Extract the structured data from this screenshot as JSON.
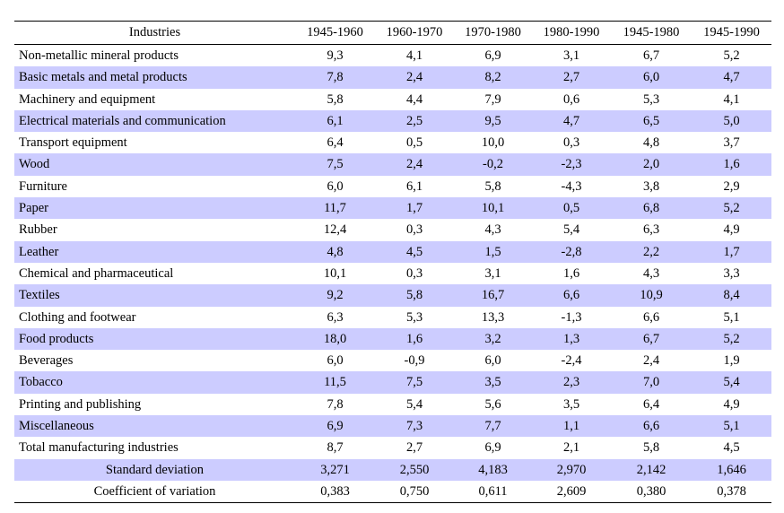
{
  "table": {
    "columns": [
      "Industries",
      "1945-1960",
      "1960-1970",
      "1970-1980",
      "1980-1990",
      "1945-1980",
      "1945-1990"
    ],
    "rows": [
      {
        "label": "Non-metallic mineral products",
        "values": [
          "9,3",
          "4,1",
          "6,9",
          "3,1",
          "6,7",
          "5,2"
        ]
      },
      {
        "label": "Basic metals and metal products",
        "values": [
          "7,8",
          "2,4",
          "8,2",
          "2,7",
          "6,0",
          "4,7"
        ]
      },
      {
        "label": "Machinery and equipment",
        "values": [
          "5,8",
          "4,4",
          "7,9",
          "0,6",
          "5,3",
          "4,1"
        ]
      },
      {
        "label": "Electrical materials and communication",
        "values": [
          "6,1",
          "2,5",
          "9,5",
          "4,7",
          "6,5",
          "5,0"
        ]
      },
      {
        "label": "Transport equipment",
        "values": [
          "6,4",
          "0,5",
          "10,0",
          "0,3",
          "4,8",
          "3,7"
        ]
      },
      {
        "label": "Wood",
        "values": [
          "7,5",
          "2,4",
          "-0,2",
          "-2,3",
          "2,0",
          "1,6"
        ]
      },
      {
        "label": "Furniture",
        "values": [
          "6,0",
          "6,1",
          "5,8",
          "-4,3",
          "3,8",
          "2,9"
        ]
      },
      {
        "label": "Paper",
        "values": [
          "11,7",
          "1,7",
          "10,1",
          "0,5",
          "6,8",
          "5,2"
        ]
      },
      {
        "label": "Rubber",
        "values": [
          "12,4",
          "0,3",
          "4,3",
          "5,4",
          "6,3",
          "4,9"
        ]
      },
      {
        "label": "Leather",
        "values": [
          "4,8",
          "4,5",
          "1,5",
          "-2,8",
          "2,2",
          "1,7"
        ]
      },
      {
        "label": "Chemical and pharmaceutical",
        "values": [
          "10,1",
          "0,3",
          "3,1",
          "1,6",
          "4,3",
          "3,3"
        ]
      },
      {
        "label": "Textiles",
        "values": [
          "9,2",
          "5,8",
          "16,7",
          "6,6",
          "10,9",
          "8,4"
        ]
      },
      {
        "label": "Clothing and footwear",
        "values": [
          "6,3",
          "5,3",
          "13,3",
          "-1,3",
          "6,6",
          "5,1"
        ]
      },
      {
        "label": "Food products",
        "values": [
          "18,0",
          "1,6",
          "3,2",
          "1,3",
          "6,7",
          "5,2"
        ]
      },
      {
        "label": "Beverages",
        "values": [
          "6,0",
          "-0,9",
          "6,0",
          "-2,4",
          "2,4",
          "1,9"
        ]
      },
      {
        "label": "Tobacco",
        "values": [
          "11,5",
          "7,5",
          "3,5",
          "2,3",
          "7,0",
          "5,4"
        ]
      },
      {
        "label": "Printing and publishing",
        "values": [
          "7,8",
          "5,4",
          "5,6",
          "3,5",
          "6,4",
          "4,9"
        ]
      },
      {
        "label": "Miscellaneous",
        "values": [
          "6,9",
          "7,3",
          "7,7",
          "1,1",
          "6,6",
          "5,1"
        ]
      },
      {
        "label": "Total manufacturing industries",
        "values": [
          "8,7",
          "2,7",
          "6,9",
          "2,1",
          "5,8",
          "4,5"
        ]
      },
      {
        "label": "Standard deviation",
        "values": [
          "3,271",
          "2,550",
          "4,183",
          "2,970",
          "2,142",
          "1,646"
        ],
        "summary": true
      },
      {
        "label": "Coefficient of variation",
        "values": [
          "0,383",
          "0,750",
          "0,611",
          "2,609",
          "0,380",
          "0,378"
        ],
        "summary": true
      }
    ]
  },
  "colors": {
    "row_shade": "#ccccff",
    "rule": "#000000",
    "background": "#ffffff"
  }
}
